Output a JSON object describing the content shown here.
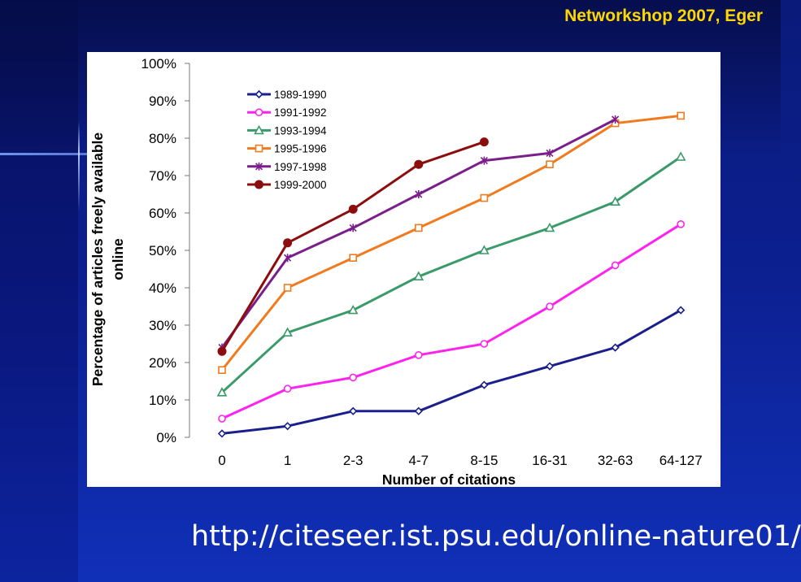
{
  "header": {
    "title": "Networkshop 2007, Eger"
  },
  "footer": {
    "url": "http://citeseer.ist.psu.edu/online-nature01/"
  },
  "colors": {
    "title": "#ffd700",
    "background": "#0c1f8f"
  },
  "chart_data": {
    "type": "line",
    "ylabel_line1": "Percentage of articles freely available",
    "ylabel_line2": "online",
    "xlabel": "Number of citations",
    "categories": [
      "0",
      "1",
      "2-3",
      "4-7",
      "8-15",
      "16-31",
      "32-63",
      "64-127"
    ],
    "ylim": [
      0,
      100
    ],
    "yticks": [
      0,
      10,
      20,
      30,
      40,
      50,
      60,
      70,
      80,
      90,
      100
    ],
    "ytick_labels": [
      "0%",
      "10%",
      "20%",
      "30%",
      "40%",
      "50%",
      "60%",
      "70%",
      "80%",
      "90%",
      "100%"
    ],
    "legend_position": "top-left",
    "grid": false,
    "series": [
      {
        "name": "1989-1990",
        "color": "#1a1f8c",
        "marker": "diamond",
        "values": [
          1,
          3,
          7,
          7,
          14,
          19,
          24,
          34
        ]
      },
      {
        "name": "1991-1992",
        "color": "#ff22ee",
        "marker": "circle-open",
        "values": [
          5,
          13,
          16,
          22,
          25,
          35,
          46,
          57
        ]
      },
      {
        "name": "1993-1994",
        "color": "#3a9a6a",
        "marker": "triangle",
        "values": [
          12,
          28,
          34,
          43,
          50,
          56,
          63,
          75
        ]
      },
      {
        "name": "1995-1996",
        "color": "#f07a1e",
        "marker": "square",
        "values": [
          18,
          40,
          48,
          56,
          64,
          73,
          84,
          86
        ]
      },
      {
        "name": "1997-1998",
        "color": "#7a1f8a",
        "marker": "star",
        "values": [
          24,
          48,
          56,
          65,
          74,
          76,
          85,
          null
        ]
      },
      {
        "name": "1999-2000",
        "color": "#8b0d0d",
        "marker": "dot",
        "values": [
          23,
          52,
          61,
          73,
          79,
          null,
          null,
          null
        ]
      }
    ]
  }
}
